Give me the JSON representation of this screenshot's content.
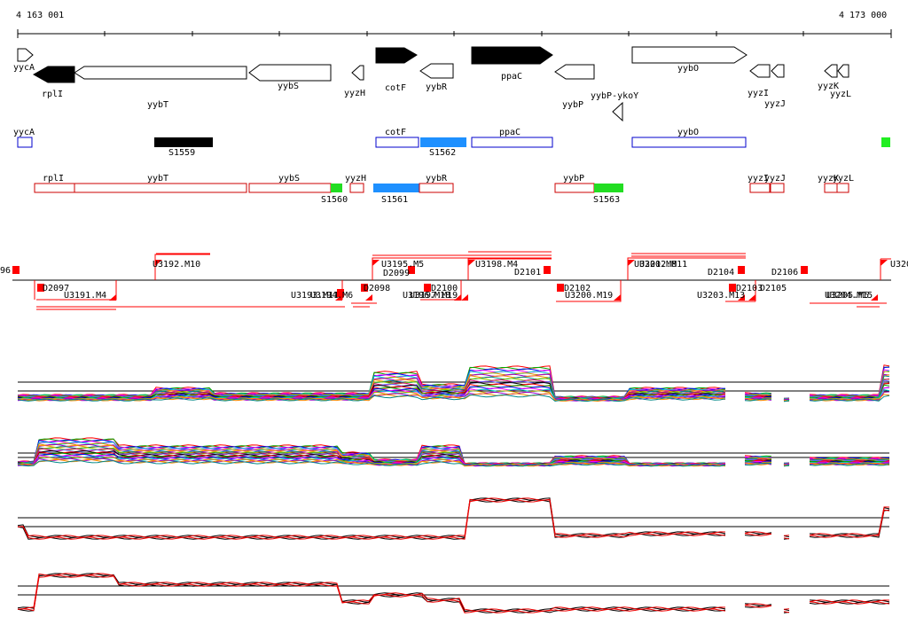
{
  "coordinates": {
    "start": "4 163 001",
    "end": "4 173 000"
  },
  "genes": [
    {
      "name": "yycA",
      "strand": "+",
      "fill": "none",
      "label": "yycA"
    },
    {
      "name": "rplI",
      "strand": "-",
      "fill": "black",
      "label": "rplI"
    },
    {
      "name": "yybT",
      "strand": "-",
      "fill": "none",
      "label": "yybT"
    },
    {
      "name": "yybS",
      "strand": "-",
      "fill": "none",
      "label": "yybS"
    },
    {
      "name": "yyzH",
      "strand": "-",
      "fill": "none",
      "label": "yyzH"
    },
    {
      "name": "cotF",
      "strand": "+",
      "fill": "black",
      "label": "cotF"
    },
    {
      "name": "yybR",
      "strand": "-",
      "fill": "none",
      "label": "yybR"
    },
    {
      "name": "ppaC",
      "strand": "+",
      "fill": "black",
      "label": "ppaC"
    },
    {
      "name": "yybP",
      "strand": "-",
      "fill": "none",
      "label": "yybP"
    },
    {
      "name": "yybP-ykoY",
      "strand": "-",
      "fill": "none",
      "label": "yybP-ykoY"
    },
    {
      "name": "yybO",
      "strand": "+",
      "fill": "none",
      "label": "yybO"
    },
    {
      "name": "yyzI",
      "strand": "-",
      "fill": "none",
      "label": "yyzI"
    },
    {
      "name": "yyzJ",
      "strand": "-",
      "fill": "none",
      "label": "yyzJ"
    },
    {
      "name": "yyzK",
      "strand": "-",
      "fill": "none",
      "label": "yyzK"
    },
    {
      "name": "yyzL",
      "strand": "-",
      "fill": "none",
      "label": "yyzL"
    }
  ],
  "forward_track": [
    {
      "label": "yycA",
      "type": "gene",
      "color": "#0000cc"
    },
    {
      "label": "S1559",
      "type": "segment",
      "color": "#000000"
    },
    {
      "label": "cotF",
      "type": "gene",
      "color": "#0000cc"
    },
    {
      "label": "S1562",
      "type": "segment",
      "color": "#1e90ff"
    },
    {
      "label": "ppaC",
      "type": "gene",
      "color": "#0000cc"
    },
    {
      "label": "yybO",
      "type": "gene",
      "color": "#0000cc"
    },
    {
      "label": "",
      "type": "segment",
      "color": "#22ee22"
    }
  ],
  "reverse_track": [
    {
      "label": "rplI",
      "color": "#cc0000"
    },
    {
      "label": "yybT",
      "color": "#cc0000"
    },
    {
      "label": "yybS",
      "color": "#cc0000"
    },
    {
      "label": "S1560",
      "color": "#22dd22"
    },
    {
      "label": "yyzH",
      "color": "#cc0000"
    },
    {
      "label": "S1561",
      "color": "#1e90ff"
    },
    {
      "label": "yybR",
      "color": "#cc0000"
    },
    {
      "label": "yybP",
      "color": "#cc0000"
    },
    {
      "label": "S1563",
      "color": "#22dd22"
    },
    {
      "label": "yyzI",
      "color": "#cc0000"
    },
    {
      "label": "yyzJ",
      "color": "#cc0000"
    },
    {
      "label": "yyzK",
      "color": "#cc0000"
    },
    {
      "label": "yyzL",
      "color": "#cc0000"
    }
  ],
  "up_features": [
    "U3192.M10",
    "U3195.M5",
    "D2099",
    "U3198.M4",
    "D2101",
    "U3201.M8",
    "U3202.M11",
    "D2104",
    "D2106",
    "U320",
    "96"
  ],
  "down_features": [
    "D2097",
    "U3191.M4",
    "U3193.M11",
    "U3194.M6",
    "D2098",
    "U3196.M18",
    "D2100",
    "U3197.M19",
    "D2102",
    "U3200.M19",
    "D2103",
    "D2105",
    "U3203.M13",
    "U3204.M15",
    "U3205.M5"
  ],
  "track_colors": {
    "gene_forward": "#0000cc",
    "gene_reverse": "#cc0000",
    "segment_blue": "#1e90ff",
    "segment_green": "#22dd22",
    "feature_red": "#ff0000",
    "expr_black": "#000000",
    "expr_red": "#ee0000"
  },
  "expression_panels": [
    {
      "name": "multi-condition-forward"
    },
    {
      "name": "multi-condition-reverse"
    },
    {
      "name": "strand-forward-summary"
    },
    {
      "name": "strand-reverse-summary"
    }
  ]
}
